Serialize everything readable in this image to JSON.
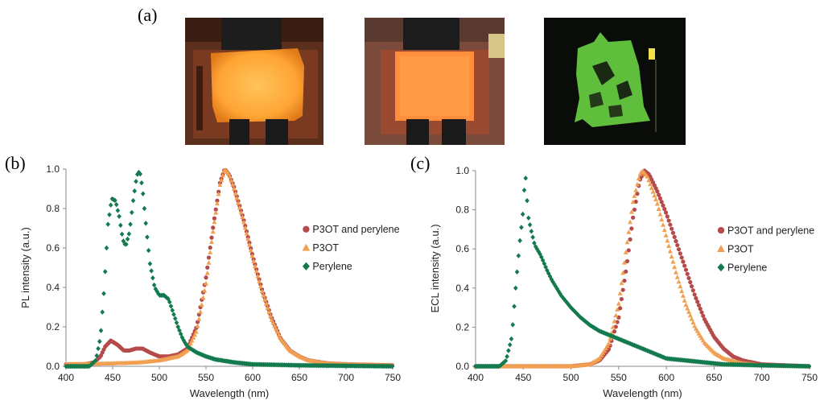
{
  "figure": {
    "label_a": "(a)",
    "label_b": "(b)",
    "label_c": "(c)"
  },
  "photos": [
    {
      "name": "device-photo-p3ot-perylene",
      "glow": "orange-yellow"
    },
    {
      "name": "device-photo-p3ot",
      "glow": "orange"
    },
    {
      "name": "device-photo-perylene",
      "glow": "green"
    }
  ],
  "colors": {
    "p3ot_perylene": "#b54a4a",
    "p3ot": "#f0a050",
    "perylene": "#137a4e"
  },
  "chart_data": [
    {
      "type": "scatter",
      "xlabel": "Wavelength (nm)",
      "ylabel": "PL intensity (a.u.)",
      "xlim": [
        400,
        750
      ],
      "ylim": [
        0,
        1.0
      ],
      "xticks": [
        "400",
        "450",
        "500",
        "550",
        "600",
        "650",
        "700",
        "750"
      ],
      "yticks": [
        "0.0",
        "0.2",
        "0.4",
        "0.6",
        "0.8",
        "1.0"
      ],
      "legend_position": "right",
      "series": [
        {
          "name": "P3OT and perylene",
          "color": "#b54a4a",
          "marker": "circle",
          "points": [
            [
              400,
              0.01
            ],
            [
              420,
              0.01
            ],
            [
              430,
              0.02
            ],
            [
              437,
              0.05
            ],
            [
              442,
              0.1
            ],
            [
              448,
              0.13
            ],
            [
              455,
              0.11
            ],
            [
              462,
              0.08
            ],
            [
              468,
              0.08
            ],
            [
              475,
              0.09
            ],
            [
              482,
              0.09
            ],
            [
              490,
              0.07
            ],
            [
              500,
              0.05
            ],
            [
              510,
              0.05
            ],
            [
              520,
              0.06
            ],
            [
              530,
              0.09
            ],
            [
              540,
              0.2
            ],
            [
              550,
              0.45
            ],
            [
              558,
              0.72
            ],
            [
              565,
              0.93
            ],
            [
              570,
              1.0
            ],
            [
              575,
              0.97
            ],
            [
              580,
              0.91
            ],
            [
              590,
              0.75
            ],
            [
              600,
              0.56
            ],
            [
              610,
              0.39
            ],
            [
              620,
              0.25
            ],
            [
              630,
              0.14
            ],
            [
              640,
              0.08
            ],
            [
              650,
              0.05
            ],
            [
              660,
              0.03
            ],
            [
              680,
              0.015
            ],
            [
              700,
              0.01
            ],
            [
              750,
              0.005
            ]
          ]
        },
        {
          "name": "P3OT",
          "color": "#f0a050",
          "marker": "triangle",
          "points": [
            [
              400,
              0.01
            ],
            [
              450,
              0.015
            ],
            [
              480,
              0.02
            ],
            [
              500,
              0.03
            ],
            [
              510,
              0.04
            ],
            [
              520,
              0.05
            ],
            [
              530,
              0.08
            ],
            [
              540,
              0.18
            ],
            [
              550,
              0.42
            ],
            [
              558,
              0.7
            ],
            [
              565,
              0.92
            ],
            [
              570,
              1.0
            ],
            [
              575,
              0.97
            ],
            [
              580,
              0.9
            ],
            [
              590,
              0.74
            ],
            [
              600,
              0.55
            ],
            [
              610,
              0.38
            ],
            [
              620,
              0.24
            ],
            [
              630,
              0.14
            ],
            [
              640,
              0.08
            ],
            [
              650,
              0.05
            ],
            [
              660,
              0.03
            ],
            [
              680,
              0.015
            ],
            [
              700,
              0.01
            ],
            [
              750,
              0.005
            ]
          ]
        },
        {
          "name": "Perylene",
          "color": "#137a4e",
          "marker": "diamond",
          "points": [
            [
              400,
              0.0
            ],
            [
              425,
              0.0
            ],
            [
              432,
              0.03
            ],
            [
              437,
              0.15
            ],
            [
              441,
              0.4
            ],
            [
              445,
              0.72
            ],
            [
              449,
              0.85
            ],
            [
              453,
              0.84
            ],
            [
              457,
              0.76
            ],
            [
              461,
              0.64
            ],
            [
              464,
              0.61
            ],
            [
              468,
              0.68
            ],
            [
              472,
              0.84
            ],
            [
              476,
              0.97
            ],
            [
              479,
              0.99
            ],
            [
              482,
              0.9
            ],
            [
              486,
              0.7
            ],
            [
              490,
              0.52
            ],
            [
              495,
              0.4
            ],
            [
              500,
              0.36
            ],
            [
              505,
              0.36
            ],
            [
              510,
              0.34
            ],
            [
              515,
              0.27
            ],
            [
              520,
              0.2
            ],
            [
              525,
              0.14
            ],
            [
              530,
              0.1
            ],
            [
              540,
              0.07
            ],
            [
              550,
              0.05
            ],
            [
              560,
              0.035
            ],
            [
              580,
              0.02
            ],
            [
              600,
              0.01
            ],
            [
              650,
              0.005
            ],
            [
              750,
              0.0
            ]
          ]
        }
      ]
    },
    {
      "type": "scatter",
      "xlabel": "Wavelength (nm)",
      "ylabel": "ECL intensity (a.u.)",
      "xlim": [
        400,
        750
      ],
      "ylim": [
        0,
        1.0
      ],
      "xticks": [
        "400",
        "450",
        "500",
        "550",
        "600",
        "650",
        "700",
        "750"
      ],
      "yticks": [
        "0.0",
        "0.2",
        "0.4",
        "0.6",
        "0.8",
        "1.0"
      ],
      "legend_position": "right",
      "series": [
        {
          "name": "P3OT and perylene",
          "color": "#b54a4a",
          "marker": "circle",
          "points": [
            [
              400,
              0.0
            ],
            [
              500,
              0.0
            ],
            [
              520,
              0.01
            ],
            [
              530,
              0.03
            ],
            [
              540,
              0.09
            ],
            [
              550,
              0.25
            ],
            [
              558,
              0.5
            ],
            [
              565,
              0.76
            ],
            [
              572,
              0.95
            ],
            [
              577,
              1.0
            ],
            [
              582,
              0.98
            ],
            [
              590,
              0.9
            ],
            [
              600,
              0.78
            ],
            [
              610,
              0.64
            ],
            [
              620,
              0.5
            ],
            [
              630,
              0.36
            ],
            [
              640,
              0.24
            ],
            [
              650,
              0.15
            ],
            [
              660,
              0.09
            ],
            [
              670,
              0.05
            ],
            [
              680,
              0.03
            ],
            [
              700,
              0.01
            ],
            [
              750,
              0.0
            ]
          ]
        },
        {
          "name": "P3OT",
          "color": "#f0a050",
          "marker": "triangle",
          "points": [
            [
              400,
              0.0
            ],
            [
              500,
              0.0
            ],
            [
              520,
              0.01
            ],
            [
              530,
              0.04
            ],
            [
              540,
              0.12
            ],
            [
              550,
              0.32
            ],
            [
              558,
              0.6
            ],
            [
              565,
              0.84
            ],
            [
              572,
              0.98
            ],
            [
              575,
              1.0
            ],
            [
              580,
              0.97
            ],
            [
              590,
              0.84
            ],
            [
              600,
              0.66
            ],
            [
              610,
              0.48
            ],
            [
              620,
              0.32
            ],
            [
              630,
              0.2
            ],
            [
              640,
              0.12
            ],
            [
              650,
              0.07
            ],
            [
              660,
              0.04
            ],
            [
              680,
              0.015
            ],
            [
              700,
              0.005
            ],
            [
              750,
              0.0
            ]
          ]
        },
        {
          "name": "Perylene",
          "color": "#137a4e",
          "marker": "diamond",
          "points": [
            [
              400,
              0.0
            ],
            [
              425,
              0.0
            ],
            [
              432,
              0.03
            ],
            [
              438,
              0.15
            ],
            [
              442,
              0.4
            ],
            [
              446,
              0.62
            ],
            [
              450,
              0.8
            ],
            [
              452,
              1.0
            ],
            [
              455,
              0.77
            ],
            [
              458,
              0.7
            ],
            [
              462,
              0.62
            ],
            [
              468,
              0.57
            ],
            [
              475,
              0.49
            ],
            [
              480,
              0.44
            ],
            [
              490,
              0.36
            ],
            [
              500,
              0.3
            ],
            [
              510,
              0.25
            ],
            [
              520,
              0.21
            ],
            [
              530,
              0.18
            ],
            [
              540,
              0.16
            ],
            [
              550,
              0.14
            ],
            [
              560,
              0.12
            ],
            [
              570,
              0.1
            ],
            [
              580,
              0.08
            ],
            [
              590,
              0.06
            ],
            [
              600,
              0.04
            ],
            [
              620,
              0.03
            ],
            [
              640,
              0.02
            ],
            [
              660,
              0.01
            ],
            [
              700,
              0.005
            ],
            [
              750,
              0.0
            ]
          ]
        }
      ]
    }
  ]
}
